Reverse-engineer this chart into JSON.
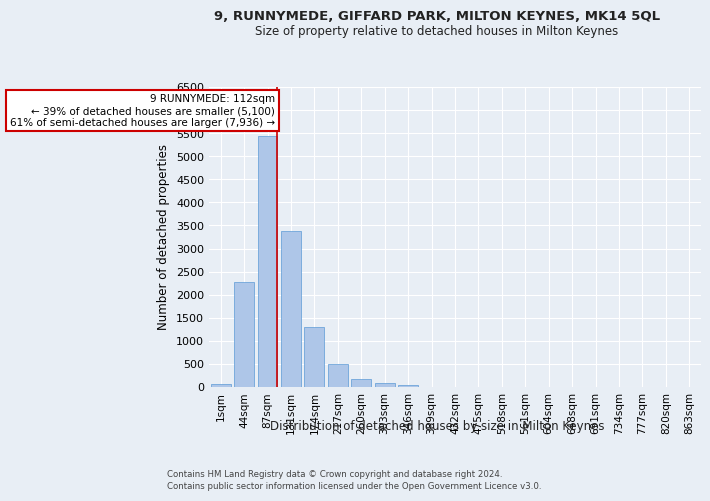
{
  "title1": "9, RUNNYMEDE, GIFFARD PARK, MILTON KEYNES, MK14 5QL",
  "title2": "Size of property relative to detached houses in Milton Keynes",
  "xlabel": "Distribution of detached houses by size in Milton Keynes",
  "ylabel": "Number of detached properties",
  "footnote1": "Contains HM Land Registry data © Crown copyright and database right 2024.",
  "footnote2": "Contains public sector information licensed under the Open Government Licence v3.0.",
  "annotation_line1": "9 RUNNYMEDE: 112sqm",
  "annotation_line2": "← 39% of detached houses are smaller (5,100)",
  "annotation_line3": "61% of semi-detached houses are larger (7,936) →",
  "bar_color": "#aec6e8",
  "bar_edge_color": "#5c9bd6",
  "bg_color": "#e8eef5",
  "grid_color": "#ffffff",
  "marker_color": "#cc0000",
  "categories": [
    "1sqm",
    "44sqm",
    "87sqm",
    "131sqm",
    "174sqm",
    "217sqm",
    "260sqm",
    "303sqm",
    "346sqm",
    "389sqm",
    "432sqm",
    "475sqm",
    "518sqm",
    "561sqm",
    "604sqm",
    "648sqm",
    "691sqm",
    "734sqm",
    "777sqm",
    "820sqm",
    "863sqm"
  ],
  "values": [
    60,
    2270,
    5430,
    3390,
    1300,
    490,
    175,
    90,
    50,
    0,
    0,
    0,
    0,
    0,
    0,
    0,
    0,
    0,
    0,
    0,
    0
  ],
  "ylim": [
    0,
    6500
  ],
  "yticks": [
    0,
    500,
    1000,
    1500,
    2000,
    2500,
    3000,
    3500,
    4000,
    4500,
    5000,
    5500,
    6000,
    6500
  ]
}
